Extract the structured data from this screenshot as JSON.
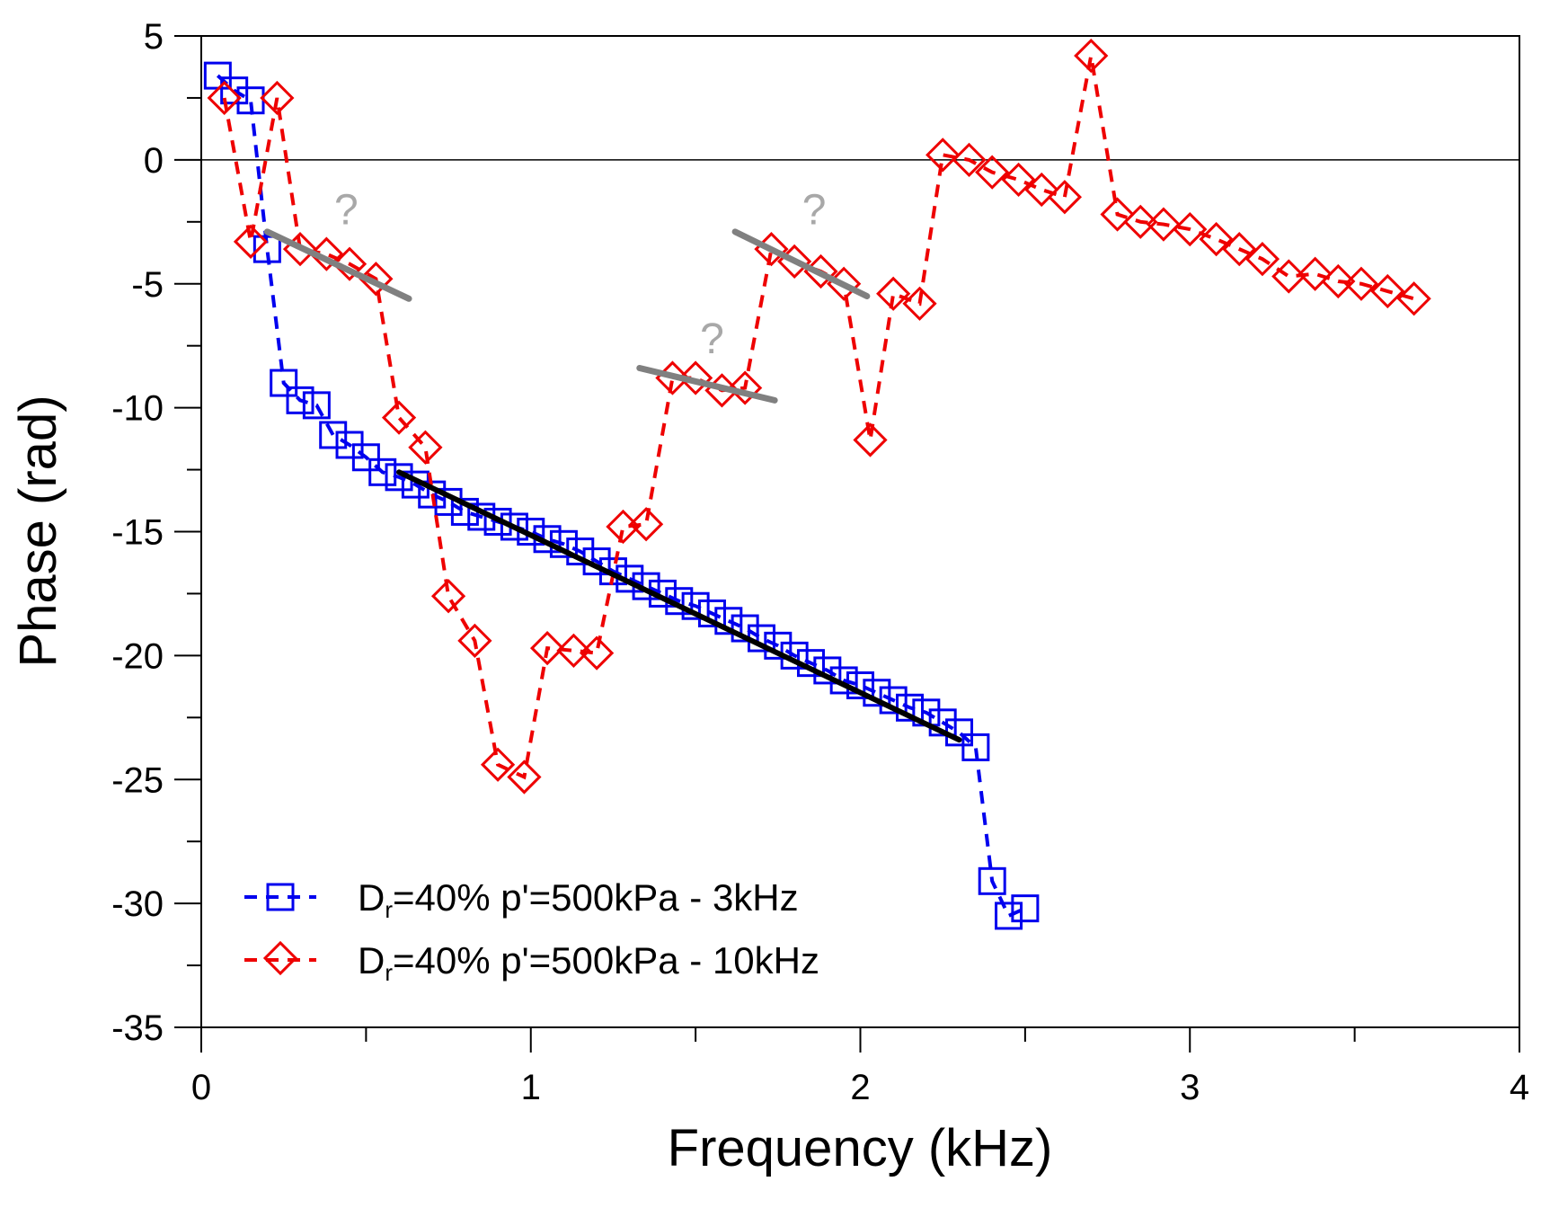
{
  "chart_data": {
    "type": "scatter",
    "title": "",
    "xlabel": "Frequency (kHz)",
    "ylabel": "Phase (rad)",
    "xlim": [
      0,
      4
    ],
    "ylim": [
      -35,
      5
    ],
    "xticks": [
      0,
      1,
      2,
      3,
      4
    ],
    "yticks": [
      5,
      0,
      -5,
      -10,
      -15,
      -20,
      -25,
      -30,
      -35
    ],
    "x_minor_step": 0.5,
    "y_minor_step": 2.5,
    "zero_line": true,
    "legend_position": "bottom-left",
    "series": [
      {
        "name": "Dr=40% p'=500kPa - 3kHz",
        "legend_main": "D",
        "legend_sub": "r",
        "legend_rest": "=40% p'=500kPa - 3kHz",
        "color": "#0000ee",
        "marker": "square",
        "x": [
          0.05,
          0.1,
          0.15,
          0.2,
          0.25,
          0.3,
          0.35,
          0.4,
          0.45,
          0.5,
          0.55,
          0.6,
          0.65,
          0.7,
          0.75,
          0.8,
          0.85,
          0.9,
          0.95,
          1.0,
          1.05,
          1.1,
          1.15,
          1.2,
          1.25,
          1.3,
          1.35,
          1.4,
          1.45,
          1.5,
          1.55,
          1.6,
          1.65,
          1.7,
          1.75,
          1.8,
          1.85,
          1.9,
          1.95,
          2.0,
          2.05,
          2.1,
          2.15,
          2.2,
          2.25,
          2.3,
          2.35,
          2.4,
          2.45,
          2.5
        ],
        "y": [
          3.4,
          2.8,
          2.4,
          -3.6,
          -9.0,
          -9.7,
          -9.9,
          -11.1,
          -11.5,
          -12.0,
          -12.6,
          -12.8,
          -13.1,
          -13.5,
          -13.8,
          -14.2,
          -14.4,
          -14.6,
          -14.8,
          -15.0,
          -15.3,
          -15.5,
          -15.8,
          -16.2,
          -16.6,
          -16.9,
          -17.2,
          -17.5,
          -17.8,
          -18.0,
          -18.3,
          -18.6,
          -18.9,
          -19.3,
          -19.6,
          -20.0,
          -20.3,
          -20.6,
          -21.0,
          -21.2,
          -21.5,
          -21.8,
          -22.1,
          -22.3,
          -22.7,
          -23.1,
          -23.7,
          -29.1,
          -30.5,
          -30.2
        ]
      },
      {
        "name": "Dr=40% p'=500kPa - 10kHz",
        "legend_main": "D",
        "legend_sub": "r",
        "legend_rest": "=40% p'=500kPa - 10kHz",
        "color": "#ee0000",
        "marker": "diamond",
        "x": [
          0.07,
          0.15,
          0.23,
          0.3,
          0.38,
          0.45,
          0.53,
          0.6,
          0.68,
          0.75,
          0.83,
          0.9,
          0.98,
          1.05,
          1.13,
          1.2,
          1.28,
          1.35,
          1.43,
          1.5,
          1.58,
          1.65,
          1.73,
          1.8,
          1.88,
          1.95,
          2.03,
          2.1,
          2.18,
          2.25,
          2.33,
          2.4,
          2.48,
          2.55,
          2.62,
          2.7,
          2.78,
          2.85,
          2.92,
          3.0,
          3.08,
          3.15,
          3.22,
          3.3,
          3.38,
          3.45,
          3.52,
          3.6,
          3.68
        ],
        "y": [
          2.5,
          -3.3,
          2.5,
          -3.6,
          -3.8,
          -4.2,
          -4.8,
          -10.4,
          -11.6,
          -17.6,
          -19.4,
          -24.4,
          -24.9,
          -19.7,
          -19.8,
          -19.9,
          -14.8,
          -14.7,
          -8.8,
          -8.8,
          -9.3,
          -9.2,
          -3.6,
          -4.1,
          -4.5,
          -5.0,
          -11.3,
          -5.4,
          -5.8,
          0.2,
          0.0,
          -0.5,
          -0.8,
          -1.2,
          -1.5,
          4.2,
          -2.2,
          -2.5,
          -2.6,
          -2.8,
          -3.2,
          -3.6,
          -4.0,
          -4.7,
          -4.6,
          -4.9,
          -5.0,
          -5.3,
          -5.6
        ]
      }
    ],
    "fit_lines": [
      {
        "color": "#000000",
        "x": [
          0.6,
          2.3
        ],
        "y": [
          -12.6,
          -23.4
        ]
      },
      {
        "color": "#808080",
        "x": [
          0.2,
          0.63
        ],
        "y": [
          -2.9,
          -5.6
        ]
      },
      {
        "color": "#808080",
        "x": [
          1.33,
          1.74
        ],
        "y": [
          -8.4,
          -9.7
        ]
      },
      {
        "color": "#808080",
        "x": [
          1.62,
          2.02
        ],
        "y": [
          -2.9,
          -5.5
        ]
      }
    ],
    "annotations": [
      {
        "text": "?",
        "x": 0.44,
        "y": -2.6
      },
      {
        "text": "?",
        "x": 1.55,
        "y": -7.8
      },
      {
        "text": "?",
        "x": 1.86,
        "y": -2.6
      }
    ]
  }
}
